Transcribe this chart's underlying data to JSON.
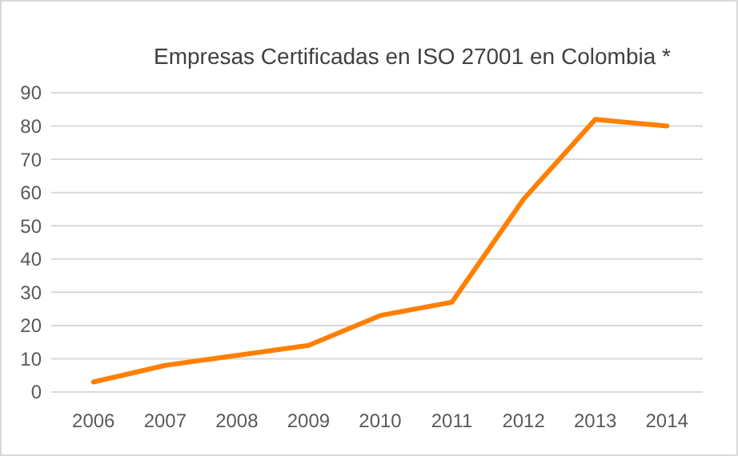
{
  "chart_data": {
    "type": "line",
    "title": "Empresas Certificadas en ISO 27001 en Colombia *",
    "categories": [
      "2006",
      "2007",
      "2008",
      "2009",
      "2010",
      "2011",
      "2012",
      "2013",
      "2014"
    ],
    "series": [
      {
        "color": "#ff7f00",
        "values": [
          3,
          8,
          11,
          14,
          23,
          27,
          58,
          82,
          80
        ]
      }
    ],
    "ylim": [
      0,
      90
    ],
    "yticks": [
      0,
      10,
      20,
      30,
      40,
      50,
      60,
      70,
      80,
      90
    ],
    "grid": "y"
  }
}
